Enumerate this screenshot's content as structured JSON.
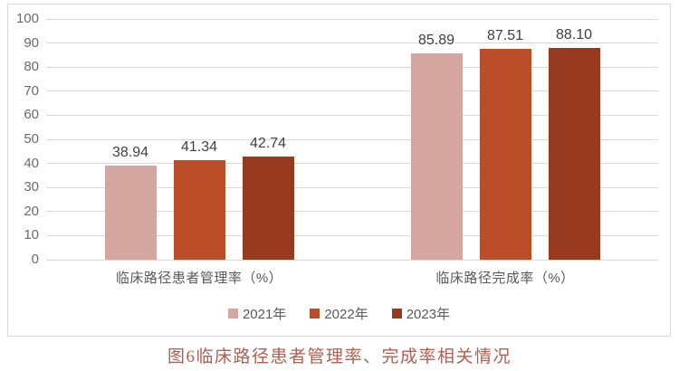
{
  "chart_data": {
    "type": "bar",
    "title": "",
    "categories": [
      "临床路径患者管理率（%）",
      "临床路径完成率（%）"
    ],
    "series": [
      {
        "name": "2021年",
        "color": "#D5A6A0",
        "values": [
          38.94,
          85.89
        ],
        "value_labels": [
          "38.94",
          "85.89"
        ]
      },
      {
        "name": "2022年",
        "color": "#BB4E29",
        "values": [
          41.34,
          87.51
        ],
        "value_labels": [
          "41.34",
          "87.51"
        ]
      },
      {
        "name": "2023年",
        "color": "#973A20",
        "values": [
          42.74,
          88.1
        ],
        "value_labels": [
          "42.74",
          "88.10"
        ]
      }
    ],
    "ylim": [
      0,
      100
    ],
    "yticks": [
      0,
      10,
      20,
      30,
      40,
      50,
      60,
      70,
      80,
      90,
      100
    ],
    "grid": true,
    "legend_position": "bottom",
    "data_labels": true
  },
  "caption": "图6临床路径患者管理率、完成率相关情况",
  "styles": {
    "bar_label_color": "#404040",
    "tick_color": "#6A6A6A",
    "category_color": "#595959",
    "legend_color": "#595959",
    "grid_color": "#D9D9D9",
    "border_color": "#D9D9D9",
    "caption_color": "#B06050",
    "background": "#FFFFFF"
  }
}
